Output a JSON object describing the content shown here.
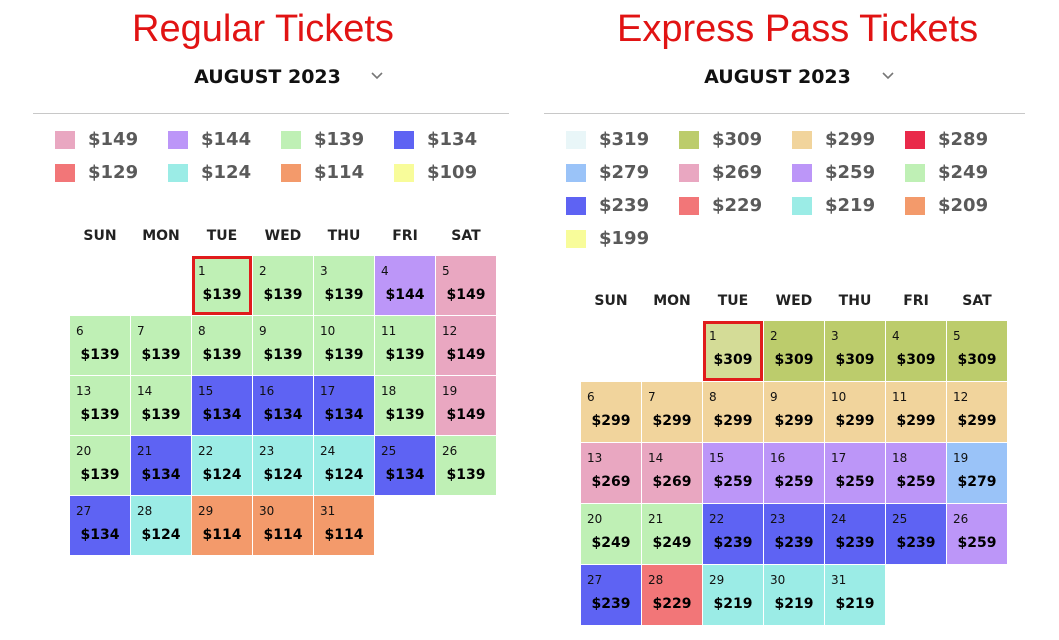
{
  "regular": {
    "title": "Regular Tickets",
    "month": "AUGUST 2023",
    "chevron_icon": "chevron-down-icon",
    "legend": [
      {
        "price": "$149",
        "color": "#e9a7c1"
      },
      {
        "price": "$144",
        "color": "#bc96f8"
      },
      {
        "price": "$139",
        "color": "#bff0b5"
      },
      {
        "price": "$134",
        "color": "#5e63f3"
      },
      {
        "price": "$129",
        "color": "#f27678"
      },
      {
        "price": "$124",
        "color": "#9bece6"
      },
      {
        "price": "$114",
        "color": "#f39a6b"
      },
      {
        "price": "$109",
        "color": "#f8fc9a"
      }
    ],
    "weekdays": [
      "SUN",
      "MON",
      "TUE",
      "WED",
      "THU",
      "FRI",
      "SAT"
    ],
    "start_weekday": 2,
    "selected_day": 1,
    "days": [
      {
        "day": "1",
        "price": "$139",
        "color": "#bff0b5"
      },
      {
        "day": "2",
        "price": "$139",
        "color": "#bff0b5"
      },
      {
        "day": "3",
        "price": "$139",
        "color": "#bff0b5"
      },
      {
        "day": "4",
        "price": "$144",
        "color": "#bc96f8"
      },
      {
        "day": "5",
        "price": "$149",
        "color": "#e9a7c1"
      },
      {
        "day": "6",
        "price": "$139",
        "color": "#bff0b5"
      },
      {
        "day": "7",
        "price": "$139",
        "color": "#bff0b5"
      },
      {
        "day": "8",
        "price": "$139",
        "color": "#bff0b5"
      },
      {
        "day": "9",
        "price": "$139",
        "color": "#bff0b5"
      },
      {
        "day": "10",
        "price": "$139",
        "color": "#bff0b5"
      },
      {
        "day": "11",
        "price": "$139",
        "color": "#bff0b5"
      },
      {
        "day": "12",
        "price": "$149",
        "color": "#e9a7c1"
      },
      {
        "day": "13",
        "price": "$139",
        "color": "#bff0b5"
      },
      {
        "day": "14",
        "price": "$139",
        "color": "#bff0b5"
      },
      {
        "day": "15",
        "price": "$134",
        "color": "#5e63f3"
      },
      {
        "day": "16",
        "price": "$134",
        "color": "#5e63f3"
      },
      {
        "day": "17",
        "price": "$134",
        "color": "#5e63f3"
      },
      {
        "day": "18",
        "price": "$139",
        "color": "#bff0b5"
      },
      {
        "day": "19",
        "price": "$149",
        "color": "#e9a7c1"
      },
      {
        "day": "20",
        "price": "$139",
        "color": "#bff0b5"
      },
      {
        "day": "21",
        "price": "$134",
        "color": "#5e63f3"
      },
      {
        "day": "22",
        "price": "$124",
        "color": "#9bece6"
      },
      {
        "day": "23",
        "price": "$124",
        "color": "#9bece6"
      },
      {
        "day": "24",
        "price": "$124",
        "color": "#9bece6"
      },
      {
        "day": "25",
        "price": "$134",
        "color": "#5e63f3"
      },
      {
        "day": "26",
        "price": "$139",
        "color": "#bff0b5"
      },
      {
        "day": "27",
        "price": "$134",
        "color": "#5e63f3"
      },
      {
        "day": "28",
        "price": "$124",
        "color": "#9bece6"
      },
      {
        "day": "29",
        "price": "$114",
        "color": "#f39a6b"
      },
      {
        "day": "30",
        "price": "$114",
        "color": "#f39a6b"
      },
      {
        "day": "31",
        "price": "$114",
        "color": "#f39a6b"
      }
    ]
  },
  "express": {
    "title": "Express Pass Tickets",
    "month": "AUGUST 2023",
    "chevron_icon": "chevron-down-icon",
    "legend": [
      {
        "price": "$319",
        "color": "#e9f6f8"
      },
      {
        "price": "$309",
        "color": "#bccc6c"
      },
      {
        "price": "$299",
        "color": "#f1d49c"
      },
      {
        "price": "$289",
        "color": "#e92a4a"
      },
      {
        "price": "$279",
        "color": "#9ac3f8"
      },
      {
        "price": "$269",
        "color": "#e9a7c1"
      },
      {
        "price": "$259",
        "color": "#bc96f8"
      },
      {
        "price": "$249",
        "color": "#bff0b5"
      },
      {
        "price": "$239",
        "color": "#5e63f3"
      },
      {
        "price": "$229",
        "color": "#f27678"
      },
      {
        "price": "$219",
        "color": "#9bece6"
      },
      {
        "price": "$209",
        "color": "#f39a6b"
      },
      {
        "price": "$199",
        "color": "#f8fc9a"
      }
    ],
    "weekdays": [
      "SUN",
      "MON",
      "TUE",
      "WED",
      "THU",
      "FRI",
      "SAT"
    ],
    "start_weekday": 2,
    "selected_day": 1,
    "days": [
      {
        "day": "1",
        "price": "$309",
        "color": "#d4dc97"
      },
      {
        "day": "2",
        "price": "$309",
        "color": "#bccc6c"
      },
      {
        "day": "3",
        "price": "$309",
        "color": "#bccc6c"
      },
      {
        "day": "4",
        "price": "$309",
        "color": "#bccc6c"
      },
      {
        "day": "5",
        "price": "$309",
        "color": "#bccc6c"
      },
      {
        "day": "6",
        "price": "$299",
        "color": "#f1d49c"
      },
      {
        "day": "7",
        "price": "$299",
        "color": "#f1d49c"
      },
      {
        "day": "8",
        "price": "$299",
        "color": "#f1d49c"
      },
      {
        "day": "9",
        "price": "$299",
        "color": "#f1d49c"
      },
      {
        "day": "10",
        "price": "$299",
        "color": "#f1d49c"
      },
      {
        "day": "11",
        "price": "$299",
        "color": "#f1d49c"
      },
      {
        "day": "12",
        "price": "$299",
        "color": "#f1d49c"
      },
      {
        "day": "13",
        "price": "$269",
        "color": "#e9a7c1"
      },
      {
        "day": "14",
        "price": "$269",
        "color": "#e9a7c1"
      },
      {
        "day": "15",
        "price": "$259",
        "color": "#bc96f8"
      },
      {
        "day": "16",
        "price": "$259",
        "color": "#bc96f8"
      },
      {
        "day": "17",
        "price": "$259",
        "color": "#bc96f8"
      },
      {
        "day": "18",
        "price": "$259",
        "color": "#bc96f8"
      },
      {
        "day": "19",
        "price": "$279",
        "color": "#9ac3f8"
      },
      {
        "day": "20",
        "price": "$249",
        "color": "#bff0b5"
      },
      {
        "day": "21",
        "price": "$249",
        "color": "#bff0b5"
      },
      {
        "day": "22",
        "price": "$239",
        "color": "#5e63f3"
      },
      {
        "day": "23",
        "price": "$239",
        "color": "#5e63f3"
      },
      {
        "day": "24",
        "price": "$239",
        "color": "#5e63f3"
      },
      {
        "day": "25",
        "price": "$239",
        "color": "#5e63f3"
      },
      {
        "day": "26",
        "price": "$259",
        "color": "#bc96f8"
      },
      {
        "day": "27",
        "price": "$239",
        "color": "#5e63f3"
      },
      {
        "day": "28",
        "price": "$229",
        "color": "#f27678"
      },
      {
        "day": "29",
        "price": "$219",
        "color": "#9bece6"
      },
      {
        "day": "30",
        "price": "$219",
        "color": "#9bece6"
      },
      {
        "day": "31",
        "price": "$219",
        "color": "#9bece6"
      }
    ]
  }
}
